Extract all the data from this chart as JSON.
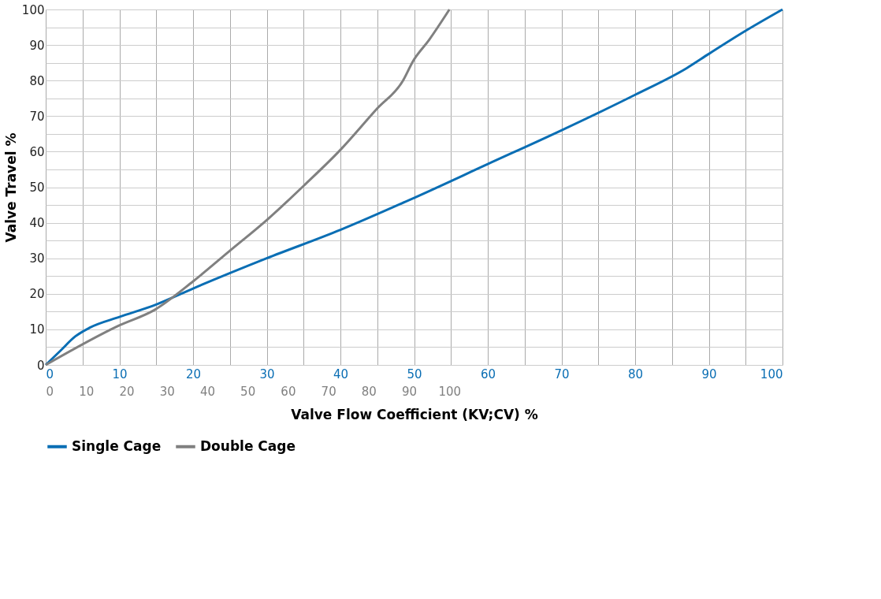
{
  "chart_data": {
    "type": "line",
    "xlabel": "Valve Flow Coefficient (KV;CV) %",
    "ylabel": "Valve Travel %",
    "xlim": [
      0,
      100
    ],
    "ylim": [
      0,
      100
    ],
    "xticks": [
      0,
      {
        "value": 5,
        "label": null
      },
      10,
      {
        "value": 15,
        "label": null
      },
      20,
      {
        "value": 25,
        "label": null
      },
      30,
      {
        "value": 35,
        "label": null
      },
      40,
      {
        "value": 45,
        "label": null
      },
      50,
      {
        "value": 55,
        "label": null
      },
      60,
      {
        "value": 65,
        "label": null
      },
      70,
      {
        "value": 75,
        "label": null
      },
      80,
      {
        "value": 85,
        "label": null
      },
      90,
      {
        "value": 95,
        "label": null
      },
      100
    ],
    "yticks": [
      0,
      {
        "value": 5,
        "label": null
      },
      10,
      {
        "value": 15,
        "label": null
      },
      20,
      {
        "value": 25,
        "label": null
      },
      30,
      {
        "value": 35,
        "label": null
      },
      40,
      {
        "value": 45,
        "label": null
      },
      50,
      {
        "value": 55,
        "label": null
      },
      60,
      {
        "value": 65,
        "label": null
      },
      70,
      {
        "value": 75,
        "label": null
      },
      80,
      {
        "value": 85,
        "label": null
      },
      90,
      {
        "value": 95,
        "label": null
      },
      100
    ],
    "x2lim": [
      0,
      182.5
    ],
    "x2ticks": [
      0,
      10,
      20,
      30,
      40,
      50,
      60,
      70,
      80,
      90,
      100
    ],
    "grid": true,
    "legend": "bottom",
    "line_style": "solid",
    "series": [
      {
        "name": "Single Cage",
        "color": "#0a6eb4",
        "x": [
          0,
          2,
          4,
          6,
          10,
          15,
          20,
          30,
          40,
          50,
          60,
          70,
          80,
          87,
          90,
          95,
          100
        ],
        "values": [
          0,
          4,
          8,
          10.5,
          13.5,
          17,
          21.5,
          30,
          38,
          47,
          56.5,
          66,
          76,
          83.5,
          87.5,
          94,
          100
        ]
      },
      {
        "name": "Double Cage",
        "color": "#808080",
        "axis": "x2",
        "x": [
          0,
          18,
          27,
          36.5,
          45.5,
          55,
          64,
          73,
          82,
          88.5,
          91,
          95,
          100
        ],
        "values": [
          0,
          11,
          15.5,
          23.5,
          32,
          41,
          50.5,
          60.5,
          72,
          80,
          85.5,
          91.5,
          100
        ]
      }
    ]
  }
}
